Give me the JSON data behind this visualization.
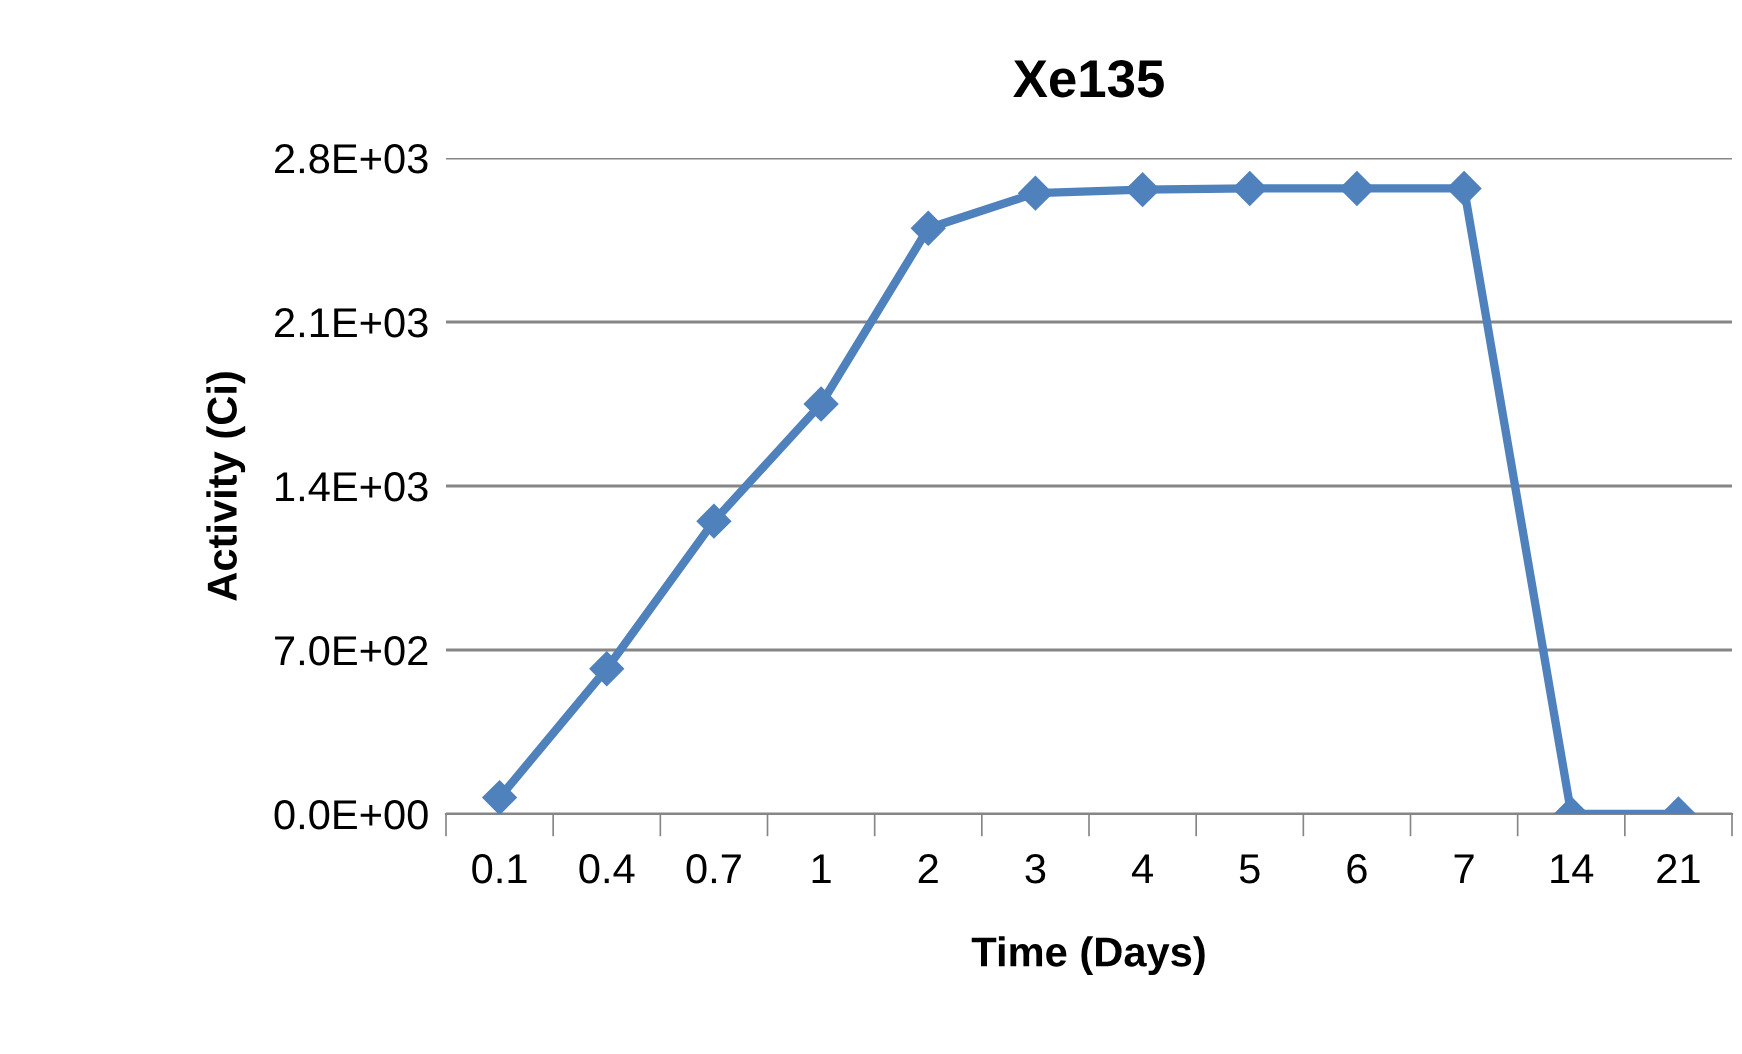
{
  "chart_data": {
    "type": "line",
    "title": "Xe135",
    "xlabel": "Time (Days)",
    "ylabel": "Activity (Ci)",
    "categories": [
      "0.1",
      "0.4",
      "0.7",
      "1",
      "2",
      "3",
      "4",
      "5",
      "6",
      "7",
      "14",
      "21"
    ],
    "series": [
      {
        "color": "#4f81bd",
        "values": [
          70,
          620,
          1250,
          1750,
          2500,
          2650,
          2665,
          2670,
          2670,
          2670,
          0,
          0
        ]
      }
    ],
    "ylim": [
      0,
      2800
    ],
    "yticks": [
      {
        "value": 0,
        "label": "0.0E+00"
      },
      {
        "value": 700,
        "label": "7.0E+02"
      },
      {
        "value": 1400,
        "label": "1.4E+03"
      },
      {
        "value": 2100,
        "label": "2.1E+03"
      },
      {
        "value": 2800,
        "label": "2.8E+03"
      }
    ],
    "grid": "y",
    "marker": "diamond",
    "line_style": "solid",
    "legend": false
  }
}
